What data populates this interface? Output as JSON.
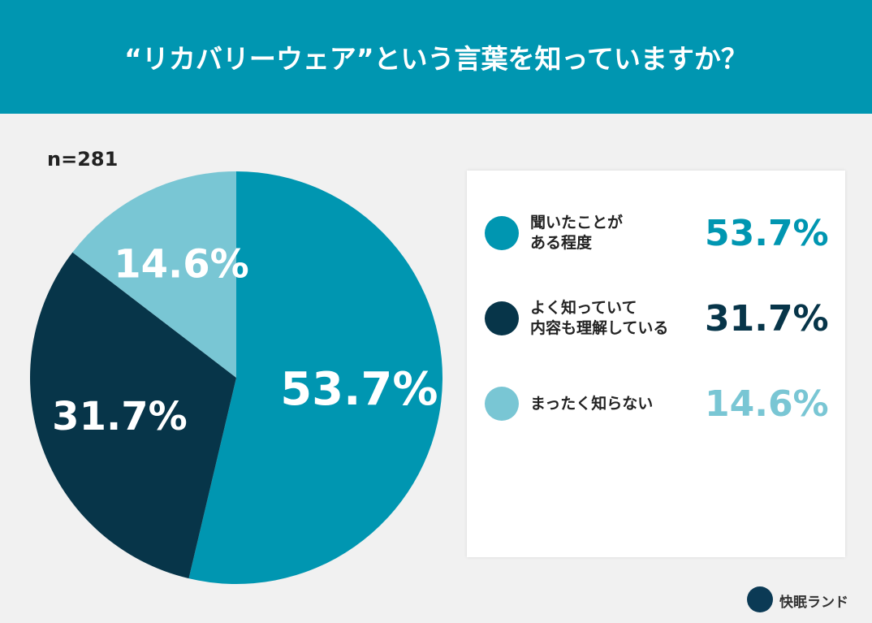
{
  "chart_data": {
    "type": "pie",
    "title": "“リカバリーウェア”という言葉を知っていますか？",
    "note": "n=281",
    "categories": [
      "聞いたことが\nある程度",
      "よく知っていて\n内容も理解している",
      "まったく知らない"
    ],
    "values": [
      53.7,
      31.7,
      14.6
    ],
    "value_labels": [
      "53.7%",
      "31.7%",
      "14.6%"
    ],
    "colors": [
      "#0096b1",
      "#073549",
      "#79c6d4"
    ],
    "brand": "快眠ランド"
  }
}
